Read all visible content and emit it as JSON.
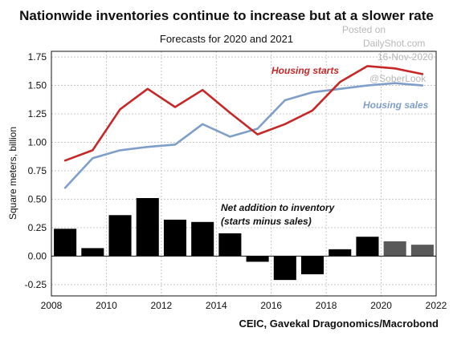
{
  "header": {
    "title": "Nationwide inventories continue to increase but at a slower rate",
    "subtitle": "Forecasts for 2020 and 2021"
  },
  "watermark": {
    "line1": "Posted on",
    "line2": "DailyShot.com",
    "line3": "16-Nov-2020",
    "line4": "@SoberLook"
  },
  "source": "CEIC, Gavekal Dragonomics/Macrobond",
  "chart_data": {
    "type": "bar+line",
    "ylabel": "Square meters, billion",
    "xlim": [
      2008,
      2022
    ],
    "ylim": [
      -0.35,
      1.8
    ],
    "x_ticks": [
      "2008",
      "2010",
      "2012",
      "2014",
      "2016",
      "2018",
      "2020",
      "2022"
    ],
    "y_ticks": [
      "-0.25",
      "0.00",
      "0.25",
      "0.50",
      "0.75",
      "1.00",
      "1.25",
      "1.50",
      "1.75"
    ],
    "grid": true,
    "colors": {
      "housing_starts": "#c62828",
      "housing_sales": "#7f9fc8",
      "bars_actual": "#000000",
      "bars_forecast": "#595959"
    },
    "lines": [
      {
        "name": "Housing starts",
        "x": [
          2008.5,
          2009.5,
          2010.5,
          2011.5,
          2012.5,
          2013.5,
          2014.5,
          2015.5,
          2016.5,
          2017.5,
          2018.5,
          2019.5,
          2020.5,
          2021.5
        ],
        "values": [
          0.84,
          0.93,
          1.29,
          1.47,
          1.31,
          1.46,
          1.26,
          1.07,
          1.16,
          1.28,
          1.53,
          1.67,
          1.65,
          1.6
        ]
      },
      {
        "name": "Housing sales",
        "x": [
          2008.5,
          2009.5,
          2010.5,
          2011.5,
          2012.5,
          2013.5,
          2014.5,
          2015.5,
          2016.5,
          2017.5,
          2018.5,
          2019.5,
          2020.5,
          2021.5
        ],
        "values": [
          0.6,
          0.86,
          0.93,
          0.96,
          0.98,
          1.16,
          1.05,
          1.12,
          1.37,
          1.44,
          1.47,
          1.5,
          1.52,
          1.5
        ]
      }
    ],
    "bars": {
      "name": "Net addition to inventory (starts minus sales)",
      "x": [
        2008.5,
        2009.5,
        2010.5,
        2011.5,
        2012.5,
        2013.5,
        2014.5,
        2015.5,
        2016.5,
        2017.5,
        2018.5,
        2019.5,
        2020.5,
        2021.5
      ],
      "values": [
        0.24,
        0.07,
        0.36,
        0.51,
        0.32,
        0.3,
        0.2,
        -0.05,
        -0.21,
        -0.16,
        0.06,
        0.17,
        0.13,
        0.1
      ],
      "forecast": [
        false,
        false,
        false,
        false,
        false,
        false,
        false,
        false,
        false,
        false,
        false,
        false,
        true,
        true
      ]
    },
    "annotations": {
      "housing_starts": "Housing starts",
      "housing_sales": "Housing sales",
      "bars_line1": "Net addition to inventory",
      "bars_line2": "(starts minus sales)"
    }
  }
}
